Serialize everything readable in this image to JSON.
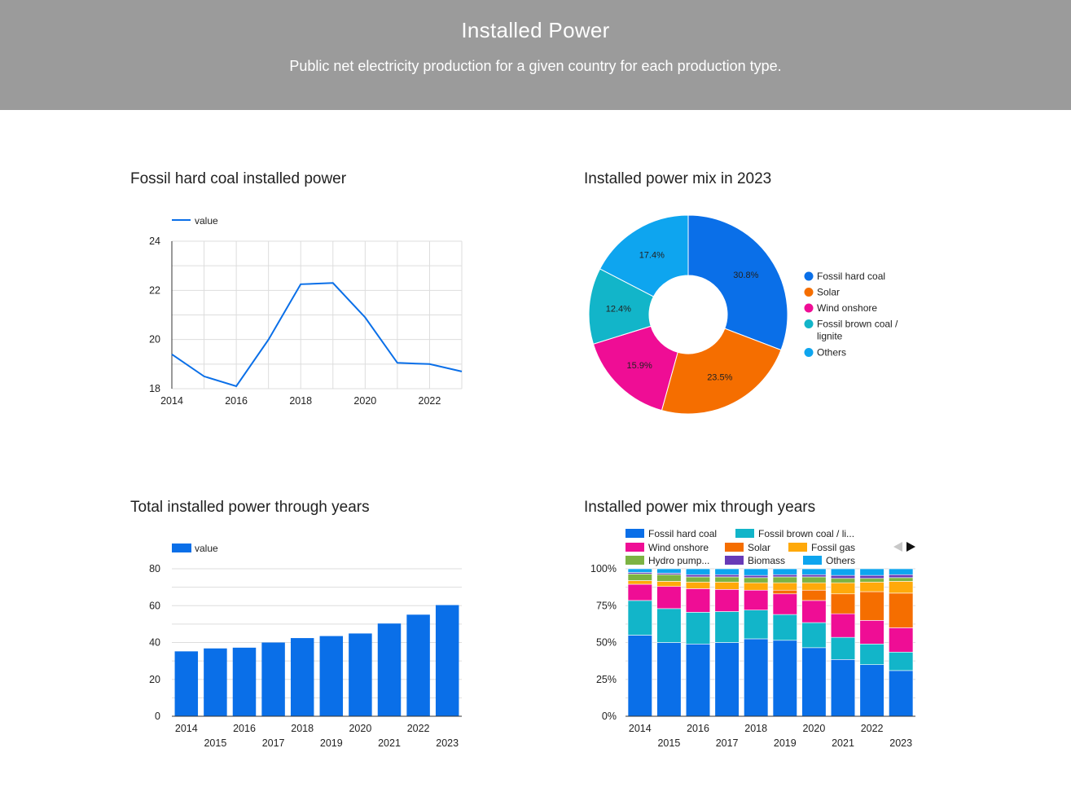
{
  "header": {
    "title": "Installed Power",
    "subtitle": "Public net electricity production for a given country for each production type."
  },
  "charts": {
    "coal_title": "Fossil hard coal installed power",
    "pie_title": "Installed power mix in 2023",
    "total_title": "Total installed power through years",
    "mix_title": "Installed power mix through years"
  },
  "colors": {
    "fossil_hard_coal": "#0a6fe8",
    "fossil_brown_coal": "#12b5c9",
    "wind_onshore": "#ef0d95",
    "solar": "#f56e00",
    "fossil_gas": "#ffa90a",
    "hydro_pump": "#7cb342",
    "biomass": "#673ab7",
    "others": "#0ea5ef",
    "grid": "#dddddd",
    "header_bg": "#9b9b9b"
  },
  "chart_data": [
    {
      "id": "coal",
      "type": "line",
      "legend": "value",
      "x": [
        2014,
        2015,
        2016,
        2017,
        2018,
        2019,
        2020,
        2021,
        2022,
        2023
      ],
      "series": [
        {
          "name": "value",
          "values": [
            19.4,
            18.5,
            18.1,
            20.0,
            22.25,
            22.3,
            20.9,
            19.05,
            19.0,
            18.7
          ]
        }
      ],
      "x_ticks": [
        "2014",
        "2016",
        "2018",
        "2020",
        "2022"
      ],
      "y_ticks": [
        "18",
        "20",
        "22",
        "24"
      ],
      "ylim": [
        18,
        24
      ],
      "grid": true,
      "legend_position": "top-left"
    },
    {
      "id": "pie",
      "type": "pie",
      "donut": true,
      "labels": [
        "Fossil hard coal",
        "Solar",
        "Wind onshore",
        "Fossil brown coal / lignite",
        "Others"
      ],
      "values": [
        30.8,
        23.5,
        15.9,
        12.4,
        17.4
      ],
      "value_labels": [
        "30.8%",
        "23.5%",
        "15.9%",
        "12.4%",
        "17.4%"
      ],
      "legend_position": "right"
    },
    {
      "id": "total",
      "type": "bar",
      "legend": "value",
      "categories": [
        "2014",
        "2015",
        "2016",
        "2017",
        "2018",
        "2019",
        "2020",
        "2021",
        "2022",
        "2023"
      ],
      "series": [
        {
          "name": "value",
          "values": [
            35.2,
            36.8,
            37.2,
            40.0,
            42.4,
            43.5,
            44.9,
            50.3,
            55.1,
            60.3
          ]
        }
      ],
      "y_ticks": [
        "0",
        "20",
        "40",
        "60",
        "80"
      ],
      "ylim": [
        0,
        80
      ],
      "grid": true,
      "legend_position": "top-left"
    },
    {
      "id": "mix",
      "type": "bar",
      "stacked": true,
      "normalized": true,
      "categories": [
        "2014",
        "2015",
        "2016",
        "2017",
        "2018",
        "2019",
        "2020",
        "2021",
        "2022",
        "2023"
      ],
      "series": [
        {
          "name": "Fossil hard coal",
          "values": [
            55,
            50,
            49,
            50,
            52.5,
            51.5,
            46.5,
            38.5,
            35,
            31
          ]
        },
        {
          "name": "Fossil brown coal / li...",
          "values": [
            23.5,
            23,
            21.5,
            21,
            19.5,
            17.5,
            17,
            15,
            14,
            12.5
          ]
        },
        {
          "name": "Wind onshore",
          "values": [
            11,
            15,
            16,
            15,
            13.5,
            14,
            15,
            16,
            16,
            16.5
          ]
        },
        {
          "name": "Solar",
          "values": [
            0,
            0,
            0,
            0,
            0,
            2.5,
            7,
            13.5,
            19.5,
            23.5
          ]
        },
        {
          "name": "Fossil gas",
          "values": [
            2.5,
            3.5,
            4.5,
            5,
            5,
            5,
            5,
            7.5,
            6.5,
            8
          ]
        },
        {
          "name": "Hydro pump...",
          "values": [
            4.5,
            4.5,
            3.5,
            3.5,
            3.5,
            4,
            4,
            3,
            2.5,
            2.5
          ]
        },
        {
          "name": "Biomass",
          "values": [
            1,
            1,
            1.5,
            1.5,
            1.5,
            1.5,
            1.5,
            2,
            2,
            2
          ]
        },
        {
          "name": "Others",
          "values": [
            2.5,
            3,
            4,
            4,
            4.5,
            4,
            4,
            4.5,
            4.5,
            4
          ]
        }
      ],
      "y_ticks": [
        "0%",
        "25%",
        "50%",
        "75%",
        "100%"
      ],
      "ylim": [
        0,
        100
      ],
      "grid": true,
      "legend_position": "top"
    }
  ]
}
